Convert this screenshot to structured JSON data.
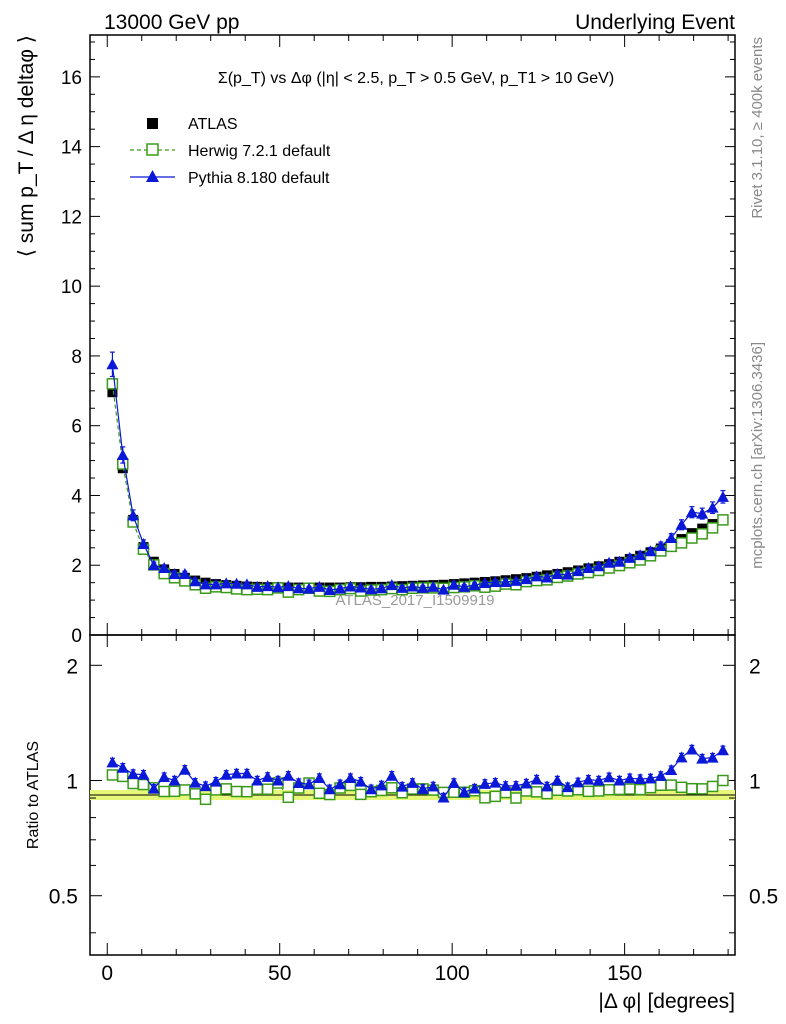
{
  "header": {
    "left": "13000 GeV pp",
    "right": "Underlying Event"
  },
  "side_labels": {
    "rivet": "Rivet 3.1.10, ≥ 400k events",
    "mcplots": "mcplots.cern.ch [arXiv:1306.3436]"
  },
  "watermark": "ATLAS_2017_I1509919",
  "plot_title": "Σ(p_T) vs Δφ (|η| < 2.5, p_T > 0.5 GeV, p_T1 > 10 GeV)",
  "colors": {
    "atlas": "#000000",
    "herwig": "#3a9a1a",
    "pythia": "#0b18d8",
    "band": "#e6f77a"
  },
  "icons": {
    "atlas_marker": "filled-square-icon",
    "herwig_marker": "open-square-icon",
    "pythia_marker": "filled-triangle-icon"
  },
  "chart_data": [
    {
      "type": "line",
      "ylabel": "⟨ sum p_T / Δ η deltaφ ⟩",
      "xlim": [
        -5,
        182
      ],
      "ylim": [
        0,
        17.2
      ],
      "yticks": [
        0,
        2,
        4,
        6,
        8,
        10,
        12,
        14,
        16
      ],
      "legend": {
        "placement": "top-left",
        "entries": [
          "ATLAS",
          "Herwig 7.2.1 default",
          "Pythia 8.180 default"
        ]
      },
      "x": [
        1.5,
        4.5,
        7.5,
        10.5,
        13.5,
        16.5,
        19.5,
        22.5,
        25.5,
        28.5,
        31.5,
        34.5,
        37.5,
        40.5,
        43.5,
        46.5,
        49.5,
        52.5,
        55.5,
        58.5,
        61.5,
        64.5,
        67.5,
        70.5,
        73.5,
        76.5,
        79.5,
        82.5,
        85.5,
        88.5,
        91.5,
        94.5,
        97.5,
        100.5,
        103.5,
        106.5,
        109.5,
        112.5,
        115.5,
        118.5,
        121.5,
        124.5,
        127.5,
        130.5,
        133.5,
        136.5,
        139.5,
        142.5,
        145.5,
        148.5,
        151.5,
        154.5,
        157.5,
        160.5,
        163.5,
        166.5,
        169.5,
        172.5,
        175.5,
        178.5
      ],
      "series": [
        {
          "name": "ATLAS",
          "values": [
            6.96,
            4.78,
            3.3,
            2.52,
            2.1,
            1.88,
            1.75,
            1.64,
            1.56,
            1.5,
            1.46,
            1.43,
            1.41,
            1.39,
            1.38,
            1.37,
            1.37,
            1.36,
            1.36,
            1.36,
            1.36,
            1.36,
            1.36,
            1.37,
            1.37,
            1.38,
            1.38,
            1.39,
            1.4,
            1.41,
            1.42,
            1.43,
            1.44,
            1.46,
            1.48,
            1.5,
            1.52,
            1.54,
            1.57,
            1.6,
            1.63,
            1.67,
            1.71,
            1.75,
            1.8,
            1.85,
            1.91,
            1.97,
            2.03,
            2.1,
            2.18,
            2.27,
            2.37,
            2.48,
            2.61,
            2.75,
            2.92,
            3.05,
            3.18,
            3.3
          ]
        },
        {
          "name": "Herwig 7.2.1 default",
          "values": [
            7.2,
            4.9,
            3.24,
            2.46,
            2.01,
            1.76,
            1.64,
            1.55,
            1.44,
            1.34,
            1.38,
            1.36,
            1.32,
            1.3,
            1.31,
            1.3,
            1.35,
            1.23,
            1.3,
            1.34,
            1.26,
            1.25,
            1.3,
            1.33,
            1.26,
            1.29,
            1.3,
            1.33,
            1.3,
            1.34,
            1.35,
            1.35,
            1.34,
            1.36,
            1.38,
            1.41,
            1.37,
            1.4,
            1.46,
            1.44,
            1.53,
            1.56,
            1.58,
            1.65,
            1.69,
            1.75,
            1.79,
            1.85,
            1.92,
            1.99,
            2.07,
            2.15,
            2.27,
            2.41,
            2.54,
            2.64,
            2.78,
            2.9,
            3.07,
            3.3
          ]
        },
        {
          "name": "Pythia 8.180 default",
          "values": [
            7.76,
            5.16,
            3.43,
            2.61,
            2.0,
            1.92,
            1.75,
            1.75,
            1.54,
            1.45,
            1.45,
            1.48,
            1.47,
            1.45,
            1.38,
            1.4,
            1.37,
            1.4,
            1.34,
            1.33,
            1.38,
            1.29,
            1.33,
            1.39,
            1.36,
            1.31,
            1.34,
            1.43,
            1.35,
            1.39,
            1.35,
            1.38,
            1.3,
            1.44,
            1.38,
            1.43,
            1.49,
            1.52,
            1.52,
            1.55,
            1.6,
            1.68,
            1.65,
            1.75,
            1.73,
            1.83,
            1.92,
            1.97,
            2.07,
            2.1,
            2.21,
            2.29,
            2.4,
            2.55,
            2.78,
            3.16,
            3.52,
            3.48,
            3.65,
            3.96
          ]
        }
      ]
    },
    {
      "type": "line",
      "xlabel": "|Δ φ| [degrees]",
      "ylabel": "Ratio to ATLAS",
      "xlim": [
        -5,
        182
      ],
      "ylim": [
        0.35,
        2.4
      ],
      "yscale": "log",
      "xticks": [
        0,
        50,
        100,
        150
      ],
      "yticks": [
        0.5,
        1,
        2
      ],
      "series": [
        {
          "name": "Herwig 7.2.1 default",
          "values": [
            1.034,
            1.025,
            0.982,
            0.976,
            0.957,
            0.936,
            0.937,
            0.945,
            0.923,
            0.893,
            0.945,
            0.951,
            0.936,
            0.935,
            0.949,
            0.949,
            0.985,
            0.904,
            0.956,
            0.985,
            0.926,
            0.919,
            0.956,
            0.971,
            0.92,
            0.935,
            0.942,
            0.957,
            0.929,
            0.95,
            0.951,
            0.944,
            0.931,
            0.932,
            0.932,
            0.94,
            0.901,
            0.909,
            0.93,
            0.9,
            0.939,
            0.934,
            0.924,
            0.943,
            0.939,
            0.946,
            0.937,
            0.939,
            0.946,
            0.948,
            0.95,
            0.947,
            0.958,
            0.972,
            0.973,
            0.96,
            0.952,
            0.951,
            0.965,
            1.0
          ]
        },
        {
          "name": "Pythia 8.180 default",
          "values": [
            1.115,
            1.08,
            1.04,
            1.036,
            0.952,
            1.021,
            1.0,
            1.067,
            0.987,
            0.967,
            0.993,
            1.035,
            1.043,
            1.043,
            1.0,
            1.022,
            1.0,
            1.029,
            0.985,
            0.978,
            1.015,
            0.949,
            0.978,
            1.015,
            0.993,
            0.949,
            0.971,
            1.029,
            0.964,
            0.986,
            0.951,
            0.965,
            0.903,
            0.986,
            0.932,
            0.953,
            0.98,
            0.987,
            0.968,
            0.969,
            0.982,
            1.006,
            0.965,
            1.0,
            0.961,
            0.989,
            1.005,
            1.0,
            1.02,
            1.0,
            1.014,
            1.009,
            1.013,
            1.028,
            1.065,
            1.149,
            1.205,
            1.141,
            1.148,
            1.2
          ]
        }
      ]
    }
  ]
}
